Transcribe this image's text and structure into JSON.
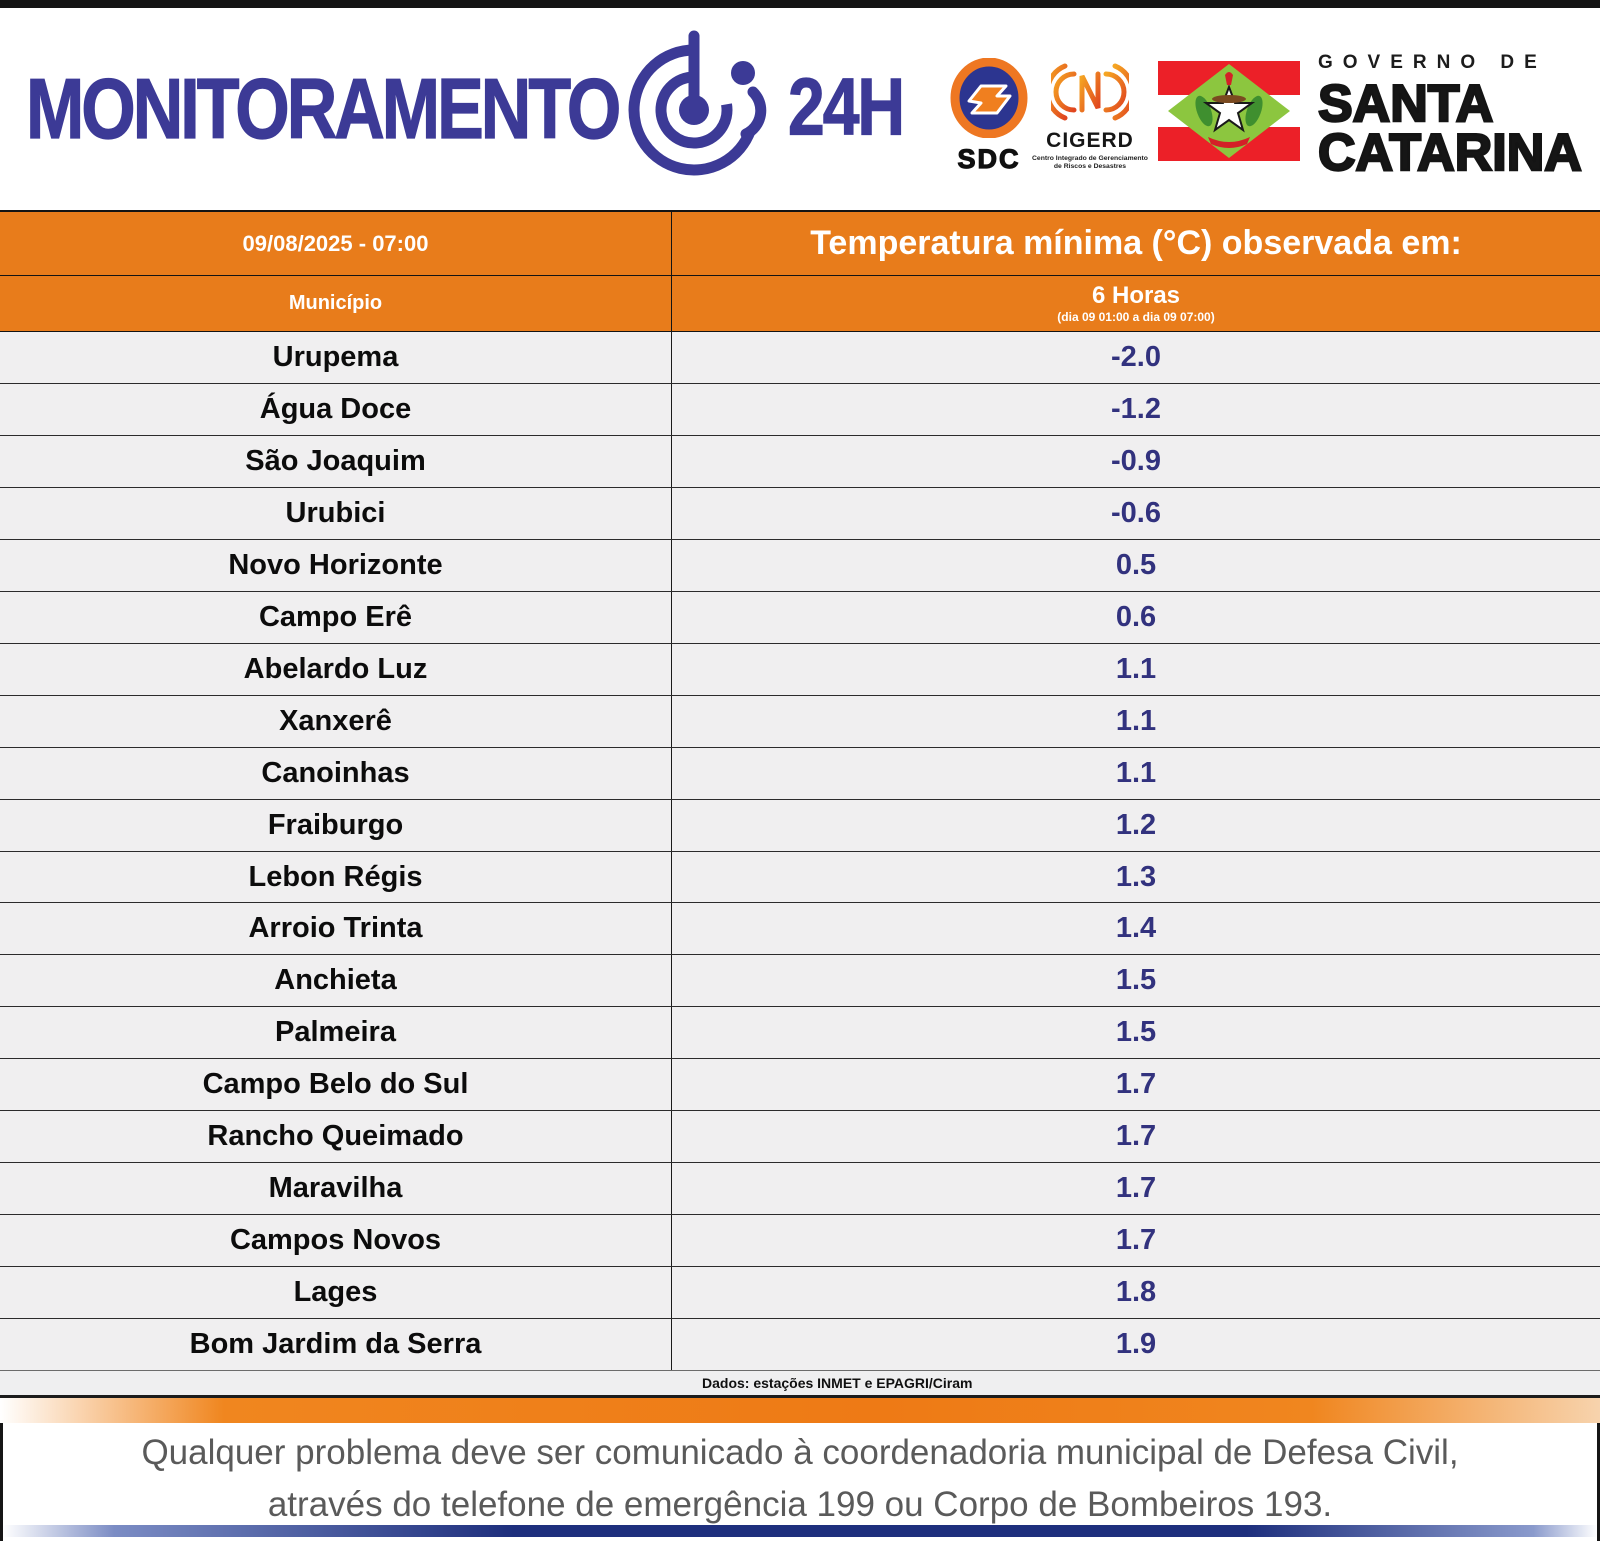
{
  "header": {
    "brand": "MONITORAMENTO",
    "brand_suffix": "24H",
    "sdc_label": "SDC",
    "cigerd_label": "CIGERD",
    "cigerd_sub": "Centro Integrado de Gerenciamento de Riscos e Desastres",
    "governo_line1": "GOVERNO DE",
    "governo_line2": "SANTA",
    "governo_line3": "CATARINA"
  },
  "table": {
    "datetime": "09/08/2025 - 07:00",
    "title": "Temperatura mínima (°C) observada em:",
    "col_municipio": "Município",
    "col_period": "6 Horas",
    "col_period_sub": "(dia 09 01:00 a dia 09 07:00)",
    "rows": [
      {
        "municipio": "Urupema",
        "temp": "-2.0"
      },
      {
        "municipio": "Água Doce",
        "temp": "-1.2"
      },
      {
        "municipio": "São Joaquim",
        "temp": "-0.9"
      },
      {
        "municipio": "Urubici",
        "temp": "-0.6"
      },
      {
        "municipio": "Novo Horizonte",
        "temp": "0.5"
      },
      {
        "municipio": "Campo Erê",
        "temp": "0.6"
      },
      {
        "municipio": "Abelardo Luz",
        "temp": "1.1"
      },
      {
        "municipio": "Xanxerê",
        "temp": "1.1"
      },
      {
        "municipio": "Canoinhas",
        "temp": "1.1"
      },
      {
        "municipio": "Fraiburgo",
        "temp": "1.2"
      },
      {
        "municipio": "Lebon Régis",
        "temp": "1.3"
      },
      {
        "municipio": "Arroio Trinta",
        "temp": "1.4"
      },
      {
        "municipio": "Anchieta",
        "temp": "1.5"
      },
      {
        "municipio": "Palmeira",
        "temp": "1.5"
      },
      {
        "municipio": "Campo Belo do Sul",
        "temp": "1.7"
      },
      {
        "municipio": "Rancho Queimado",
        "temp": "1.7"
      },
      {
        "municipio": "Maravilha",
        "temp": "1.7"
      },
      {
        "municipio": "Campos Novos",
        "temp": "1.7"
      },
      {
        "municipio": "Lages",
        "temp": "1.8"
      },
      {
        "municipio": "Bom Jardim da Serra",
        "temp": "1.9"
      }
    ]
  },
  "source_note": "Dados: estações INMET e EPAGRI/Ciram",
  "footer": {
    "line1": "Qualquer problema deve ser comunicado à coordenadoria municipal de Defesa Civil,",
    "line2": "através do telefone de emergência 199 ou Corpo de Bombeiros 193."
  },
  "colors": {
    "orange_header": "#e87c1b",
    "brand_blue": "#3c3a96",
    "temperature_navy": "#32327e",
    "row_background": "#f0eff0",
    "footer_text_gray": "#5a5a5a",
    "bottom_bar_blue": "#1e2f7d",
    "flag_red": "#ec2028",
    "flag_green": "#8cc63f"
  },
  "chart_data": {
    "type": "table",
    "title": "Temperatura mínima (°C) observada em: 6 Horas (dia 09 01:00 a dia 09 07:00) — 09/08/2025 - 07:00",
    "columns": [
      "Município",
      "Temperatura mínima (°C)"
    ],
    "rows": [
      [
        "Urupema",
        -2.0
      ],
      [
        "Água Doce",
        -1.2
      ],
      [
        "São Joaquim",
        -0.9
      ],
      [
        "Urubici",
        -0.6
      ],
      [
        "Novo Horizonte",
        0.5
      ],
      [
        "Campo Erê",
        0.6
      ],
      [
        "Abelardo Luz",
        1.1
      ],
      [
        "Xanxerê",
        1.1
      ],
      [
        "Canoinhas",
        1.1
      ],
      [
        "Fraiburgo",
        1.2
      ],
      [
        "Lebon Régis",
        1.3
      ],
      [
        "Arroio Trinta",
        1.4
      ],
      [
        "Anchieta",
        1.5
      ],
      [
        "Palmeira",
        1.5
      ],
      [
        "Campo Belo do Sul",
        1.7
      ],
      [
        "Rancho Queimado",
        1.7
      ],
      [
        "Maravilha",
        1.7
      ],
      [
        "Campos Novos",
        1.7
      ],
      [
        "Lages",
        1.8
      ],
      [
        "Bom Jardim da Serra",
        1.9
      ]
    ]
  }
}
